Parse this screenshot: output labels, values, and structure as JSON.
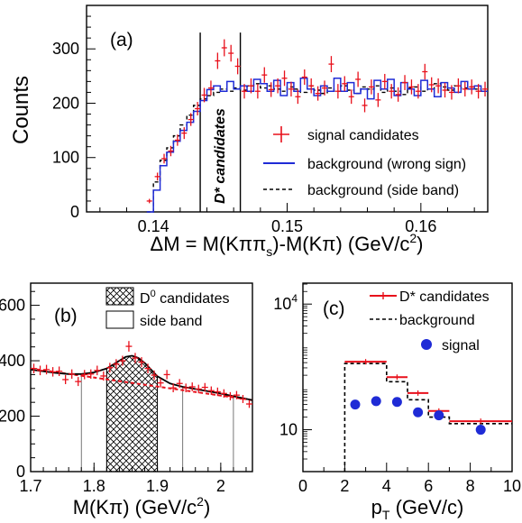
{
  "colors": {
    "signal": "#e8101b",
    "wrong_sign": "#1f2bd6",
    "side_band": "#000000",
    "fit": "#000000",
    "dots": "#1f2bd6"
  },
  "chart_data": [
    {
      "id": "a",
      "type": "histogram",
      "panel_label": "(a)",
      "xlabel_main": "ΔM = M(Kππ",
      "xlabel_sub": "s",
      "xlabel_tail": ")-M(Kπ) (GeV/c",
      "xlabel_sup": "2",
      "xlabel_end": ")",
      "ylabel": "Counts",
      "xlim": [
        0.135,
        0.165
      ],
      "ylim": [
        0,
        380
      ],
      "x_ticks": [
        0.14,
        0.15,
        0.16
      ],
      "y_ticks": [
        0,
        100,
        200,
        300
      ],
      "signal_window": [
        0.1435,
        0.1465
      ],
      "window_label": "D* candidates",
      "legend": [
        "signal candidates",
        "background (wrong sign)",
        "background (side band)"
      ],
      "signal_points": [
        [
          0.1397,
          20
        ],
        [
          0.1403,
          65
        ],
        [
          0.1408,
          98
        ],
        [
          0.1413,
          112
        ],
        [
          0.1418,
          132
        ],
        [
          0.1423,
          145
        ],
        [
          0.1428,
          170
        ],
        [
          0.1433,
          190
        ],
        [
          0.1438,
          215
        ],
        [
          0.1443,
          228
        ],
        [
          0.1448,
          278
        ],
        [
          0.1453,
          302
        ],
        [
          0.1458,
          292
        ],
        [
          0.1463,
          268
        ],
        [
          0.1468,
          222
        ],
        [
          0.1473,
          232
        ],
        [
          0.1478,
          222
        ],
        [
          0.1483,
          252
        ],
        [
          0.1488,
          225
        ],
        [
          0.1493,
          232
        ],
        [
          0.1498,
          246
        ],
        [
          0.1503,
          226
        ],
        [
          0.1508,
          212
        ],
        [
          0.1513,
          248
        ],
        [
          0.1518,
          232
        ],
        [
          0.1523,
          218
        ],
        [
          0.1528,
          228
        ],
        [
          0.1533,
          272
        ],
        [
          0.1538,
          222
        ],
        [
          0.1543,
          236
        ],
        [
          0.1548,
          212
        ],
        [
          0.1553,
          244
        ],
        [
          0.1558,
          196
        ],
        [
          0.1563,
          230
        ],
        [
          0.1568,
          206
        ],
        [
          0.1573,
          240
        ],
        [
          0.1578,
          222
        ],
        [
          0.1583,
          216
        ],
        [
          0.1588,
          238
        ],
        [
          0.1593,
          230
        ],
        [
          0.1598,
          222
        ],
        [
          0.1603,
          258
        ],
        [
          0.1608,
          234
        ],
        [
          0.1613,
          232
        ],
        [
          0.1618,
          224
        ],
        [
          0.1623,
          220
        ],
        [
          0.1628,
          232
        ],
        [
          0.1633,
          226
        ],
        [
          0.1638,
          230
        ],
        [
          0.1643,
          222
        ],
        [
          0.1648,
          226
        ]
      ],
      "wrong_sign": [
        [
          0.1395,
          0
        ],
        [
          0.14,
          40
        ],
        [
          0.1405,
          85
        ],
        [
          0.141,
          110
        ],
        [
          0.1415,
          130
        ],
        [
          0.142,
          150
        ],
        [
          0.1425,
          165
        ],
        [
          0.143,
          185
        ],
        [
          0.1435,
          205
        ],
        [
          0.144,
          225
        ],
        [
          0.1445,
          232
        ],
        [
          0.145,
          222
        ],
        [
          0.1455,
          240
        ],
        [
          0.146,
          226
        ],
        [
          0.1465,
          232
        ],
        [
          0.147,
          222
        ],
        [
          0.1475,
          244
        ],
        [
          0.148,
          236
        ],
        [
          0.1485,
          222
        ],
        [
          0.149,
          242
        ],
        [
          0.1495,
          214
        ],
        [
          0.15,
          238
        ],
        [
          0.1505,
          222
        ],
        [
          0.151,
          246
        ],
        [
          0.1515,
          226
        ],
        [
          0.152,
          214
        ],
        [
          0.1525,
          232
        ],
        [
          0.153,
          222
        ],
        [
          0.1535,
          246
        ],
        [
          0.154,
          222
        ],
        [
          0.1545,
          238
        ],
        [
          0.155,
          218
        ],
        [
          0.1555,
          226
        ],
        [
          0.156,
          208
        ],
        [
          0.1565,
          242
        ],
        [
          0.157,
          226
        ],
        [
          0.1575,
          244
        ],
        [
          0.158,
          214
        ],
        [
          0.1585,
          238
        ],
        [
          0.159,
          226
        ],
        [
          0.1595,
          214
        ],
        [
          0.16,
          242
        ],
        [
          0.1605,
          226
        ],
        [
          0.161,
          212
        ],
        [
          0.1615,
          238
        ],
        [
          0.162,
          228
        ],
        [
          0.1625,
          220
        ],
        [
          0.163,
          240
        ],
        [
          0.1635,
          226
        ],
        [
          0.164,
          232
        ],
        [
          0.1645,
          222
        ]
      ],
      "side_band": [
        [
          0.1395,
          0
        ],
        [
          0.14,
          55
        ],
        [
          0.1405,
          95
        ],
        [
          0.141,
          118
        ],
        [
          0.1415,
          140
        ],
        [
          0.142,
          160
        ],
        [
          0.1425,
          178
        ],
        [
          0.143,
          196
        ],
        [
          0.1435,
          208
        ],
        [
          0.144,
          214
        ],
        [
          0.1445,
          220
        ],
        [
          0.145,
          226
        ],
        [
          0.1455,
          222
        ],
        [
          0.146,
          228
        ],
        [
          0.1465,
          224
        ],
        [
          0.147,
          232
        ],
        [
          0.1475,
          236
        ],
        [
          0.148,
          228
        ],
        [
          0.1485,
          232
        ],
        [
          0.149,
          226
        ],
        [
          0.1495,
          222
        ],
        [
          0.15,
          230
        ],
        [
          0.1505,
          226
        ],
        [
          0.151,
          220
        ],
        [
          0.1515,
          232
        ],
        [
          0.152,
          224
        ],
        [
          0.1525,
          218
        ],
        [
          0.153,
          228
        ],
        [
          0.1535,
          222
        ],
        [
          0.154,
          232
        ],
        [
          0.1545,
          224
        ],
        [
          0.155,
          218
        ],
        [
          0.1555,
          230
        ],
        [
          0.156,
          226
        ],
        [
          0.1565,
          232
        ],
        [
          0.157,
          220
        ],
        [
          0.1575,
          228
        ],
        [
          0.158,
          222
        ],
        [
          0.1585,
          216
        ],
        [
          0.159,
          228
        ],
        [
          0.1595,
          230
        ],
        [
          0.16,
          222
        ],
        [
          0.1605,
          226
        ],
        [
          0.161,
          236
        ],
        [
          0.1615,
          230
        ],
        [
          0.162,
          224
        ],
        [
          0.1625,
          232
        ],
        [
          0.163,
          228
        ],
        [
          0.1635,
          230
        ],
        [
          0.164,
          226
        ],
        [
          0.1645,
          222
        ]
      ]
    },
    {
      "id": "b",
      "type": "histogram_fit",
      "panel_label": "(b)",
      "xlabel_main": "M(Kπ) (GeV/c",
      "xlabel_sup": "2",
      "xlabel_end": ")",
      "xlim": [
        1.7,
        2.05
      ],
      "ylim": [
        0,
        680
      ],
      "x_ticks": [
        1.7,
        1.8,
        1.9,
        2.0
      ],
      "x_tick_labels": [
        "1.7",
        "1.8",
        "1.9",
        "2"
      ],
      "y_ticks": [
        0,
        200,
        400,
        600
      ],
      "signal_region": [
        1.82,
        1.9
      ],
      "side_bands": [
        [
          1.78,
          1.82
        ],
        [
          1.94,
          2.02
        ]
      ],
      "legend_main_1": "D",
      "legend_sup_1": "0",
      "legend_tail_1": " candidates",
      "legend_2": "side band",
      "data_points": [
        [
          1.705,
          372
        ],
        [
          1.715,
          365
        ],
        [
          1.725,
          368
        ],
        [
          1.735,
          360
        ],
        [
          1.745,
          362
        ],
        [
          1.755,
          332
        ],
        [
          1.765,
          352
        ],
        [
          1.775,
          325
        ],
        [
          1.785,
          350
        ],
        [
          1.795,
          352
        ],
        [
          1.805,
          365
        ],
        [
          1.815,
          345
        ],
        [
          1.825,
          375
        ],
        [
          1.835,
          388
        ],
        [
          1.845,
          400
        ],
        [
          1.855,
          452
        ],
        [
          1.865,
          410
        ],
        [
          1.875,
          395
        ],
        [
          1.885,
          372
        ],
        [
          1.895,
          348
        ],
        [
          1.905,
          320
        ],
        [
          1.915,
          350
        ],
        [
          1.925,
          302
        ],
        [
          1.935,
          318
        ],
        [
          1.945,
          302
        ],
        [
          1.955,
          306
        ],
        [
          1.965,
          298
        ],
        [
          1.975,
          304
        ],
        [
          1.985,
          292
        ],
        [
          1.995,
          288
        ],
        [
          2.005,
          282
        ],
        [
          2.015,
          272
        ],
        [
          2.025,
          276
        ],
        [
          2.035,
          262
        ],
        [
          2.045,
          244
        ]
      ],
      "fit_total": [
        [
          1.7,
          368
        ],
        [
          1.72,
          362
        ],
        [
          1.74,
          356
        ],
        [
          1.76,
          352
        ],
        [
          1.78,
          352
        ],
        [
          1.8,
          358
        ],
        [
          1.82,
          372
        ],
        [
          1.83,
          386
        ],
        [
          1.84,
          400
        ],
        [
          1.85,
          414
        ],
        [
          1.86,
          418
        ],
        [
          1.87,
          410
        ],
        [
          1.88,
          392
        ],
        [
          1.89,
          368
        ],
        [
          1.9,
          344
        ],
        [
          1.92,
          318
        ],
        [
          1.94,
          306
        ],
        [
          1.96,
          298
        ],
        [
          1.98,
          290
        ],
        [
          2.0,
          282
        ],
        [
          2.02,
          272
        ],
        [
          2.05,
          258
        ]
      ],
      "fit_background": [
        [
          1.7,
          372
        ],
        [
          2.05,
          258
        ]
      ]
    },
    {
      "id": "c",
      "type": "histogram_log",
      "panel_label": "(c)",
      "xlabel_main": "p",
      "xlabel_sub": "T",
      "xlabel_tail": " (GeV/c)",
      "xlim": [
        0,
        10
      ],
      "ylog_range": [
        0,
        4.5
      ],
      "x_ticks": [
        0,
        2,
        4,
        6,
        8,
        10
      ],
      "y_ticks": [
        {
          "exp": 1,
          "base": "10",
          "sup": ""
        },
        {
          "exp": 4,
          "base": "10",
          "sup": "4"
        }
      ],
      "legend_main_1": "D",
      "legend_tail_1": "* candidates",
      "legend_2": "background",
      "legend_3": "signal",
      "dstar_bins": [
        [
          2,
          4,
          420
        ],
        [
          4,
          5,
          180
        ],
        [
          5,
          6,
          75
        ],
        [
          6,
          7,
          28
        ],
        [
          7,
          10,
          16
        ]
      ],
      "background_bins": [
        [
          2,
          4,
          380
        ],
        [
          4,
          5,
          140
        ],
        [
          5,
          6,
          52
        ],
        [
          6,
          7,
          20
        ],
        [
          7,
          10,
          14
        ]
      ],
      "signal_points": [
        [
          2.5,
          40
        ],
        [
          3.5,
          48
        ],
        [
          4.5,
          46
        ],
        [
          5.5,
          26
        ],
        [
          6.5,
          22
        ],
        [
          8.5,
          10
        ]
      ]
    }
  ]
}
